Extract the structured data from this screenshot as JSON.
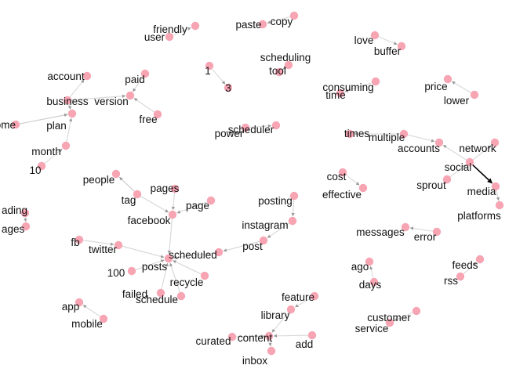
{
  "graph": {
    "node_color": "#f7a4b3",
    "edge_color": "#b8b8b8",
    "strong_edge_color": "#000000",
    "nodes": [
      {
        "id": "friendly",
        "label": "friendly"
      },
      {
        "id": "user",
        "label": "user"
      },
      {
        "id": "copy",
        "label": "copy"
      },
      {
        "id": "paste",
        "label": "paste"
      },
      {
        "id": "love",
        "label": "love"
      },
      {
        "id": "buffer",
        "label": "buffer"
      },
      {
        "id": "scheduling",
        "label": "scheduling"
      },
      {
        "id": "tool",
        "label": "tool"
      },
      {
        "id": "one",
        "label": "1"
      },
      {
        "id": "three",
        "label": "3"
      },
      {
        "id": "account",
        "label": "account"
      },
      {
        "id": "paid",
        "label": "paid"
      },
      {
        "id": "business",
        "label": "business"
      },
      {
        "id": "version",
        "label": "version"
      },
      {
        "id": "esome",
        "label": "esome"
      },
      {
        "id": "plan",
        "label": "plan"
      },
      {
        "id": "free",
        "label": "free"
      },
      {
        "id": "month",
        "label": "month"
      },
      {
        "id": "ten",
        "label": "10"
      },
      {
        "id": "consuming",
        "label": "consuming"
      },
      {
        "id": "time",
        "label": "time"
      },
      {
        "id": "price",
        "label": "price"
      },
      {
        "id": "lower",
        "label": "lower"
      },
      {
        "id": "power",
        "label": "power"
      },
      {
        "id": "scheduler",
        "label": "scheduler"
      },
      {
        "id": "times",
        "label": "times"
      },
      {
        "id": "multiple",
        "label": "multiple"
      },
      {
        "id": "accounts",
        "label": "accounts"
      },
      {
        "id": "network",
        "label": "network"
      },
      {
        "id": "social",
        "label": "social"
      },
      {
        "id": "cost",
        "label": "cost"
      },
      {
        "id": "effective",
        "label": "effective"
      },
      {
        "id": "sprout",
        "label": "sprout"
      },
      {
        "id": "media",
        "label": "media"
      },
      {
        "id": "platforms",
        "label": "platforms"
      },
      {
        "id": "people",
        "label": "people"
      },
      {
        "id": "tag",
        "label": "tag"
      },
      {
        "id": "pages",
        "label": "pages"
      },
      {
        "id": "page",
        "label": "page"
      },
      {
        "id": "facebook",
        "label": "facebook"
      },
      {
        "id": "ading",
        "label": "ading"
      },
      {
        "id": "ages",
        "label": "ages"
      },
      {
        "id": "posting",
        "label": "posting"
      },
      {
        "id": "instagram",
        "label": "instagram"
      },
      {
        "id": "post",
        "label": "post"
      },
      {
        "id": "fb",
        "label": "fb"
      },
      {
        "id": "twitter",
        "label": "twitter"
      },
      {
        "id": "scheduled",
        "label": "scheduled"
      },
      {
        "id": "posts",
        "label": "posts"
      },
      {
        "id": "hundred",
        "label": "100"
      },
      {
        "id": "recycle",
        "label": "recycle"
      },
      {
        "id": "failed",
        "label": "failed"
      },
      {
        "id": "schedule",
        "label": "schedule"
      },
      {
        "id": "messages",
        "label": "messages"
      },
      {
        "id": "error",
        "label": "error"
      },
      {
        "id": "ago",
        "label": "ago"
      },
      {
        "id": "days",
        "label": "days"
      },
      {
        "id": "feeds",
        "label": "feeds"
      },
      {
        "id": "rss",
        "label": "rss"
      },
      {
        "id": "app",
        "label": "app"
      },
      {
        "id": "mobile",
        "label": "mobile"
      },
      {
        "id": "feature",
        "label": "feature"
      },
      {
        "id": "library",
        "label": "library"
      },
      {
        "id": "customer",
        "label": "customer"
      },
      {
        "id": "service",
        "label": "service"
      },
      {
        "id": "curated",
        "label": "curated"
      },
      {
        "id": "content",
        "label": "content"
      },
      {
        "id": "add",
        "label": "add"
      },
      {
        "id": "inbox",
        "label": "inbox"
      }
    ],
    "edges": [
      {
        "from": "user",
        "to": "friendly",
        "weight": 0.2
      },
      {
        "from": "copy",
        "to": "paste",
        "weight": 0.2
      },
      {
        "from": "love",
        "to": "buffer",
        "weight": 0.2
      },
      {
        "from": "scheduling",
        "to": "tool",
        "weight": 0.2
      },
      {
        "from": "one",
        "to": "three",
        "weight": 0.2
      },
      {
        "from": "business",
        "to": "account",
        "weight": 0.25
      },
      {
        "from": "paid",
        "to": "version",
        "weight": 0.25
      },
      {
        "from": "business",
        "to": "version",
        "weight": 0.25
      },
      {
        "from": "business",
        "to": "plan",
        "weight": 0.45
      },
      {
        "from": "esome",
        "to": "plan",
        "weight": 0.45
      },
      {
        "from": "free",
        "to": "version",
        "weight": 0.25
      },
      {
        "from": "month",
        "to": "plan",
        "weight": 0.25
      },
      {
        "from": "ten",
        "to": "month",
        "weight": 0.2
      },
      {
        "from": "consuming",
        "to": "time",
        "weight": 0.2
      },
      {
        "from": "lower",
        "to": "price",
        "weight": 0.2
      },
      {
        "from": "power",
        "to": "scheduler",
        "weight": 0.2
      },
      {
        "from": "multiple",
        "to": "times",
        "weight": 0.25
      },
      {
        "from": "multiple",
        "to": "accounts",
        "weight": 0.25
      },
      {
        "from": "social",
        "to": "accounts",
        "weight": 0.25
      },
      {
        "from": "social",
        "to": "network",
        "weight": 0.25
      },
      {
        "from": "social",
        "to": "media",
        "weight": 1
      },
      {
        "from": "sprout",
        "to": "social",
        "weight": 0.2
      },
      {
        "from": "media",
        "to": "platforms",
        "weight": 0.25
      },
      {
        "from": "cost",
        "to": "effective",
        "weight": 0.2
      },
      {
        "from": "tag",
        "to": "people",
        "weight": 0.45
      },
      {
        "from": "tag",
        "to": "facebook",
        "weight": 0.25
      },
      {
        "from": "pages",
        "to": "facebook",
        "weight": 0.25
      },
      {
        "from": "page",
        "to": "facebook",
        "weight": 0.25
      },
      {
        "from": "facebook",
        "to": "posts",
        "weight": 0.25
      },
      {
        "from": "ading",
        "to": "ages",
        "weight": 0.2
      },
      {
        "from": "posting",
        "to": "instagram",
        "weight": 0.25
      },
      {
        "from": "instagram",
        "to": "post",
        "weight": 0.25
      },
      {
        "from": "post",
        "to": "scheduled",
        "weight": 0.25
      },
      {
        "from": "fb",
        "to": "twitter",
        "weight": 0.25
      },
      {
        "from": "twitter",
        "to": "posts",
        "weight": 0.25
      },
      {
        "from": "hundred",
        "to": "posts",
        "weight": 0.2
      },
      {
        "from": "recycle",
        "to": "posts",
        "weight": 0.3
      },
      {
        "from": "failed",
        "to": "posts",
        "weight": 0.2
      },
      {
        "from": "schedule",
        "to": "posts",
        "weight": 0.3
      },
      {
        "from": "scheduled",
        "to": "posts",
        "weight": 0.3
      },
      {
        "from": "error",
        "to": "messages",
        "weight": 0.2
      },
      {
        "from": "days",
        "to": "ago",
        "weight": 0.2
      },
      {
        "from": "rss",
        "to": "feeds",
        "weight": 0.2
      },
      {
        "from": "mobile",
        "to": "app",
        "weight": 0.25
      },
      {
        "from": "feature",
        "to": "library",
        "weight": 0.2
      },
      {
        "from": "library",
        "to": "content",
        "weight": 0.2
      },
      {
        "from": "customer",
        "to": "service",
        "weight": 0.2
      },
      {
        "from": "curated",
        "to": "content",
        "weight": 0.2
      },
      {
        "from": "add",
        "to": "content",
        "weight": 0.25
      },
      {
        "from": "content",
        "to": "inbox",
        "weight": 0.25
      }
    ]
  }
}
